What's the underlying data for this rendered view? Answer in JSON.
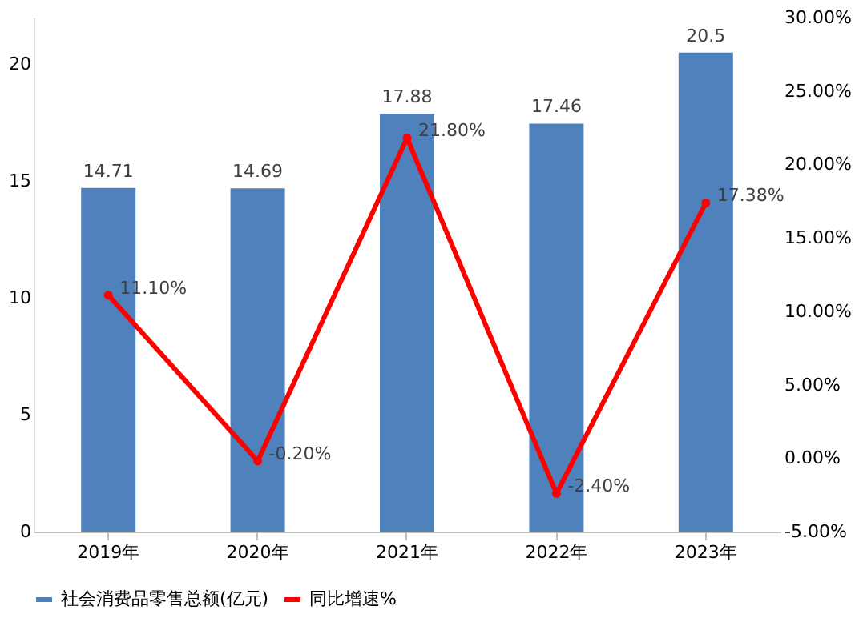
{
  "chart_data": {
    "type": "bar",
    "categories": [
      "2019年",
      "2020年",
      "2021年",
      "2022年",
      "2023年"
    ],
    "series": [
      {
        "name": "社会消费品零售总额(亿元)",
        "color": "#4f81bd",
        "values": [
          14.71,
          14.69,
          17.88,
          17.46,
          20.5
        ],
        "value_labels": [
          "14.71",
          "14.69",
          "17.88",
          "17.46",
          "20.5"
        ]
      },
      {
        "name": "同比增速%",
        "type": "line",
        "axis": "y2",
        "color": "#ff0000",
        "marker": "circle",
        "values": [
          11.1,
          -0.2,
          21.8,
          -2.4,
          17.38
        ],
        "value_labels": [
          "11.10%",
          "-0.20%",
          "21.80%",
          "-2.40%",
          "17.38%"
        ]
      }
    ],
    "ylim": [
      0,
      22
    ],
    "yticks": [
      0,
      5,
      10,
      15,
      20
    ],
    "y2lim": [
      -5,
      30
    ],
    "y2ticks": [
      {
        "value": -5,
        "label": "-5.00%"
      },
      {
        "value": 0,
        "label": "0.00%"
      },
      {
        "value": 5,
        "label": "5.00%"
      },
      {
        "value": 10,
        "label": "10.00%"
      },
      {
        "value": 15,
        "label": "15.00%"
      },
      {
        "value": 20,
        "label": "20.00%"
      },
      {
        "value": 25,
        "label": "25.00%"
      },
      {
        "value": 30,
        "label": "30.00%"
      }
    ],
    "legend": "bottom"
  }
}
